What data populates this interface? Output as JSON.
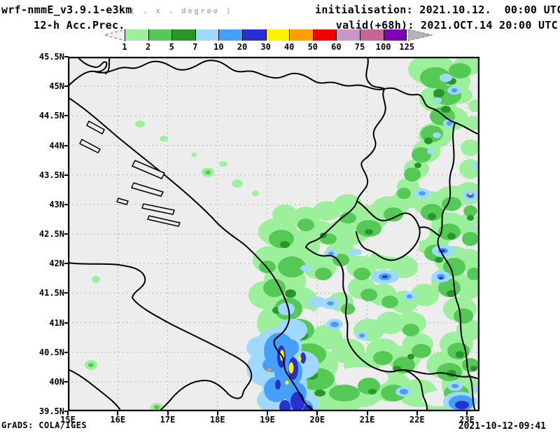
{
  "header": {
    "model_title": "wrf-nmmE_v3.9.1-e3km",
    "units_note": "( . x . degree )",
    "subtitle": "12-h Acc.Prec.",
    "init_line": "initialisation: 2021.10.12.  00:00 UTC",
    "valid_line": "valid(+68h): 2021.OCT.14 20:00 UTC"
  },
  "legend": {
    "tick_labels": [
      "1",
      "2",
      "5",
      "7",
      "10",
      "20",
      "30",
      "40",
      "50",
      "60",
      "75",
      "100",
      "125"
    ],
    "colors": [
      "#9cf09c",
      "#55c855",
      "#289628",
      "#a0d8ff",
      "#469ffa",
      "#2830d0",
      "#fff000",
      "#ffa000",
      "#f00000",
      "#c896c8",
      "#c86496",
      "#7d00b4"
    ],
    "left_arrow_fill": "#f2f2f2",
    "right_arrow_fill": "#b4b4b4"
  },
  "axes": {
    "lat_labels": [
      "45.5N",
      "45N",
      "44.5N",
      "44N",
      "43.5N",
      "43N",
      "42.5N",
      "42N",
      "41.5N",
      "41N",
      "40.5N",
      "40N",
      "39.5N"
    ],
    "lon_labels": [
      "15E",
      "16E",
      "17E",
      "18E",
      "19E",
      "20E",
      "21E",
      "22E",
      "23E"
    ]
  },
  "map_style": {
    "background": "#ededed",
    "grid_color": "#b4b4b4",
    "line_color": "#000000"
  },
  "footer": {
    "credit": "GrADS: COLA/IGES",
    "generated": "2021-10-12-09:41"
  },
  "chart_data": {
    "type": "heatmap",
    "title": "12-h Acc.Prec.",
    "legend_bins_mm": [
      1,
      2,
      5,
      7,
      10,
      20,
      30,
      40,
      50,
      60,
      75,
      100,
      125
    ],
    "bin_colors": [
      "#9cf09c",
      "#55c855",
      "#289628",
      "#a0d8ff",
      "#469ffa",
      "#2830d0",
      "#fff000",
      "#ffa000",
      "#f00000",
      "#c896c8",
      "#c86496",
      "#7d00b4"
    ],
    "lat_range": [
      39.5,
      45.5
    ],
    "lon_range": [
      15,
      23.3
    ],
    "grid": "dashed, 0.5 deg lat x 1 deg lon",
    "notes": "Accumulated precipitation over the Balkans: maxima 30-40+ mm (yellow cores in dark blue) near 19.5E/40.2N on the Albanian coast; widespread 1-30 mm over Albania, Kosovo, N. Macedonia and S. Serbia; NE-SW green band with embedded 7-20 mm cells near 21-22E/44-45.5N; mostly dry over the Adriatic, Croatia, Bosnia and Italy."
  }
}
